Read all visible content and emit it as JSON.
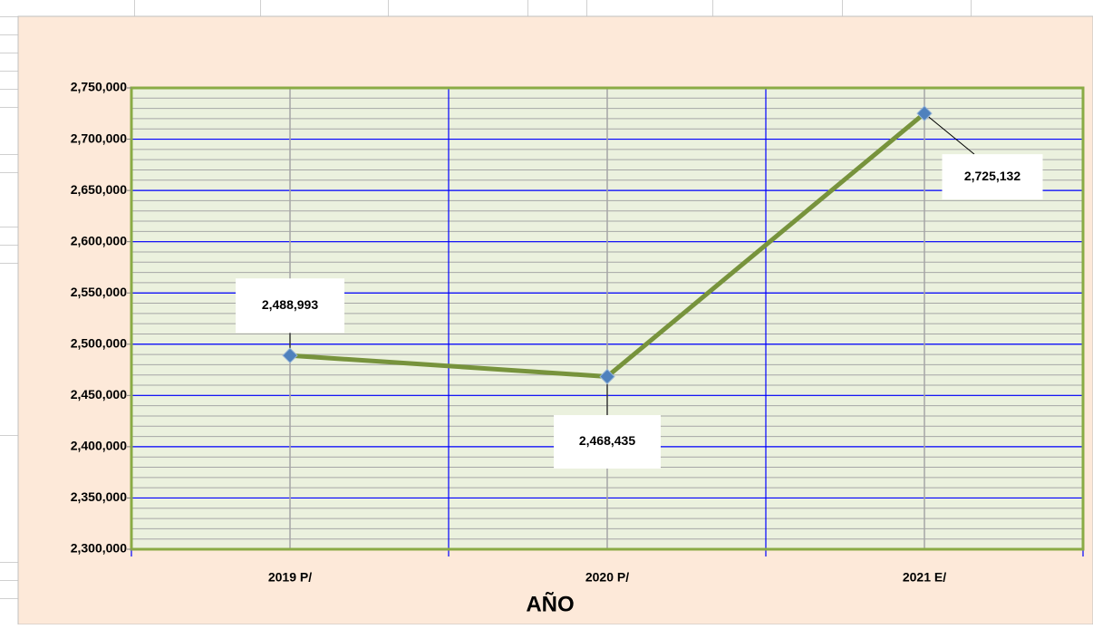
{
  "chart_data": {
    "type": "line",
    "x_label": "AÑO",
    "categories": [
      "2019 P/",
      "2020 P/",
      "2021 E/"
    ],
    "series": [
      {
        "name": null,
        "color": "#77933c",
        "marker_color": "#4f81bd",
        "values": [
          2488993,
          2468435,
          2725132
        ],
        "value_labels": [
          "2,488,993",
          "2,468,435",
          "2,725,132"
        ]
      }
    ],
    "ylim": [
      2300000,
      2750000
    ],
    "yticks": [
      {
        "value": 2300000,
        "label": "2,300,000"
      },
      {
        "value": 2350000,
        "label": "2,350,000"
      },
      {
        "value": 2400000,
        "label": "2,400,000"
      },
      {
        "value": 2450000,
        "label": "2,450,000"
      },
      {
        "value": 2500000,
        "label": "2,500,000"
      },
      {
        "value": 2550000,
        "label": "2,550,000"
      },
      {
        "value": 2600000,
        "label": "2,600,000"
      },
      {
        "value": 2650000,
        "label": "2,650,000"
      },
      {
        "value": 2700000,
        "label": "2,700,000"
      },
      {
        "value": 2750000,
        "label": "2,750,000"
      }
    ],
    "grid": true,
    "minor_grid": 10000
  }
}
